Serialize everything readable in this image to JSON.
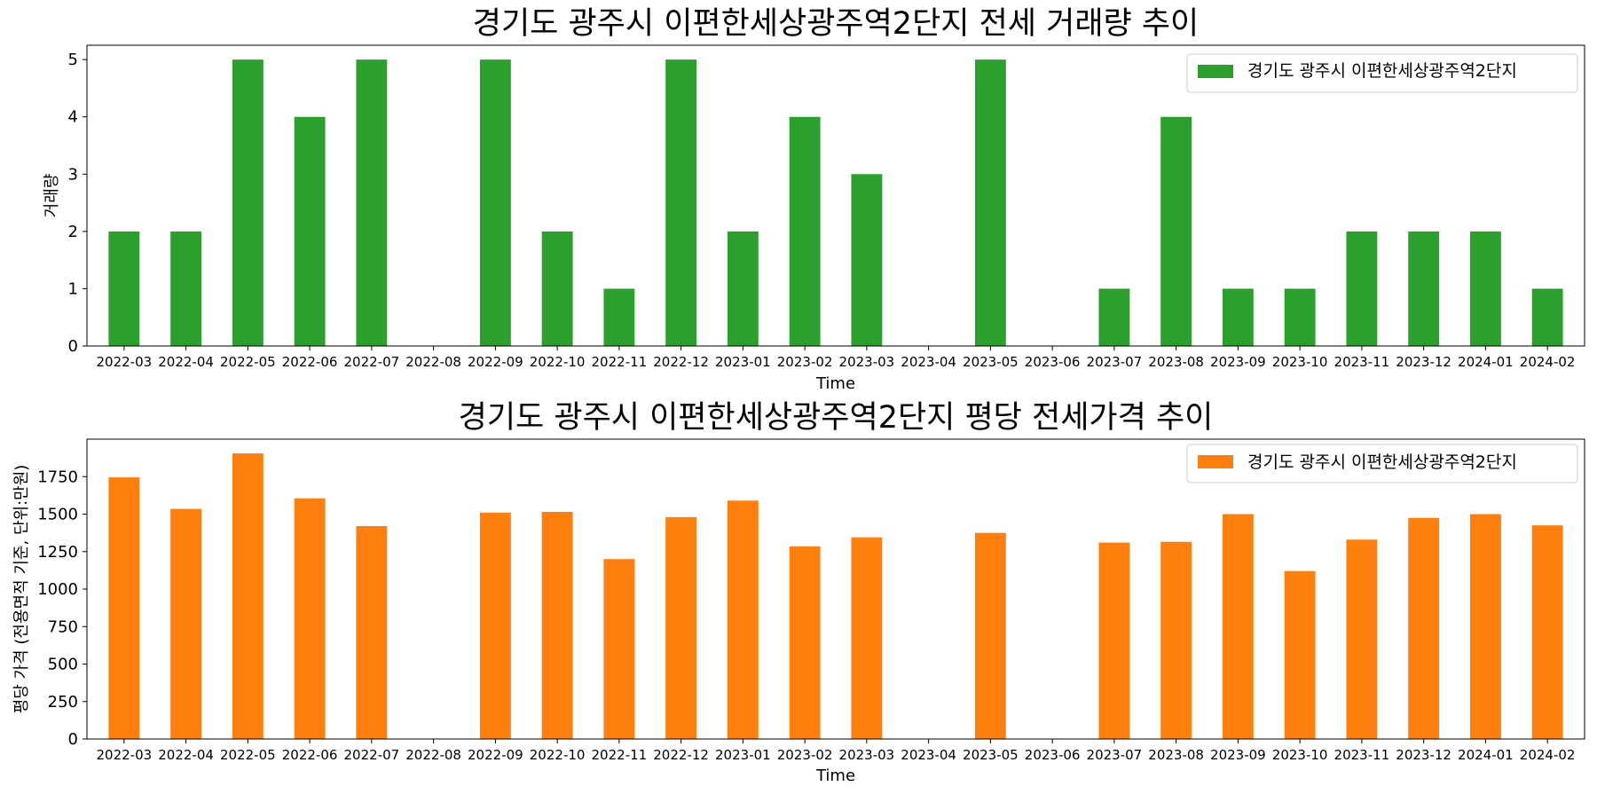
{
  "chart_data": [
    {
      "type": "bar",
      "title": "경기도 광주시 이편한세상광주역2단지 전세 거래량 추이",
      "xlabel": "Time",
      "ylabel": "거래량",
      "ylim": [
        0,
        5.25
      ],
      "yticks": [
        "0",
        "1",
        "2",
        "3",
        "4",
        "5"
      ],
      "categories": [
        "2022-03",
        "2022-04",
        "2022-05",
        "2022-06",
        "2022-07",
        "2022-08",
        "2022-09",
        "2022-10",
        "2022-11",
        "2022-12",
        "2023-01",
        "2023-02",
        "2023-03",
        "2023-04",
        "2023-05",
        "2023-06",
        "2023-07",
        "2023-08",
        "2023-09",
        "2023-10",
        "2023-11",
        "2023-12",
        "2024-01",
        "2024-02"
      ],
      "series": [
        {
          "name": "경기도 광주시 이편한세상광주역2단지",
          "color": "#2ca02c",
          "values": [
            2,
            2,
            5,
            4,
            5,
            0,
            5,
            2,
            1,
            5,
            2,
            4,
            3,
            0,
            5,
            0,
            1,
            4,
            1,
            1,
            2,
            2,
            2,
            1
          ]
        }
      ],
      "legend": "top-right",
      "grid": false
    },
    {
      "type": "bar",
      "title": "경기도 광주시 이편한세상광주역2단지 평당 전세가격 추이",
      "xlabel": "Time",
      "ylabel": "평당 가격 (전용면적 기준, 단위:만원)",
      "ylim": [
        0,
        2000
      ],
      "yticks": [
        "0",
        "250",
        "500",
        "750",
        "1000",
        "1250",
        "1500",
        "1750"
      ],
      "categories": [
        "2022-03",
        "2022-04",
        "2022-05",
        "2022-06",
        "2022-07",
        "2022-08",
        "2022-09",
        "2022-10",
        "2022-11",
        "2022-12",
        "2023-01",
        "2023-02",
        "2023-03",
        "2023-04",
        "2023-05",
        "2023-06",
        "2023-07",
        "2023-08",
        "2023-09",
        "2023-10",
        "2023-11",
        "2023-12",
        "2024-01",
        "2024-02"
      ],
      "series": [
        {
          "name": "경기도 광주시 이편한세상광주역2단지",
          "color": "#ff7f0e",
          "values": [
            1745,
            1535,
            1905,
            1605,
            1420,
            0,
            1510,
            1515,
            1200,
            1480,
            1590,
            1285,
            1345,
            0,
            1375,
            0,
            1310,
            1315,
            1500,
            1120,
            1330,
            1475,
            1500,
            1425
          ]
        }
      ],
      "legend": "top-right",
      "grid": false
    }
  ]
}
